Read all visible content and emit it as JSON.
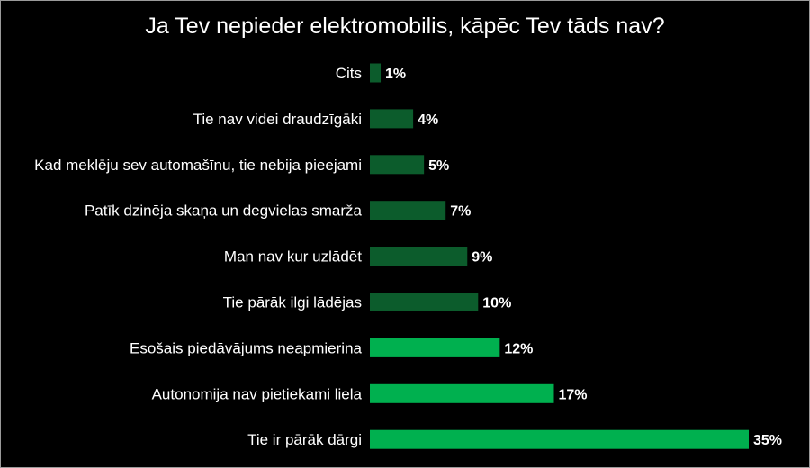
{
  "chart_data": {
    "type": "bar",
    "orientation": "horizontal",
    "title": "Ja Tev nepieder elektromobilis, kāpēc Tev tāds nav?",
    "categories": [
      "Cits",
      "Tie nav videi draudzīgāki",
      "Kad meklēju sev automašīnu, tie nebija pieejami",
      "Patīk dzinēja skaņa un degvielas smarža",
      "Man nav kur uzlādēt",
      "Tie pārāk ilgi lādējas",
      "Esošais piedāvājums neapmierina",
      "Autonomija nav pietiekami liela",
      "Tie ir pārāk dārgi"
    ],
    "values": [
      1,
      4,
      5,
      7,
      9,
      10,
      12,
      17,
      35
    ],
    "value_labels": [
      "1%",
      "4%",
      "5%",
      "7%",
      "9%",
      "10%",
      "12%",
      "17%",
      "35%"
    ],
    "xlim": [
      0,
      35
    ],
    "grid": false,
    "colors": {
      "dark_bar": "#0c5c2c",
      "bright_bar": "#00b04f",
      "background": "#000000",
      "text": "#ffffff"
    },
    "bright_from_index": 6
  }
}
